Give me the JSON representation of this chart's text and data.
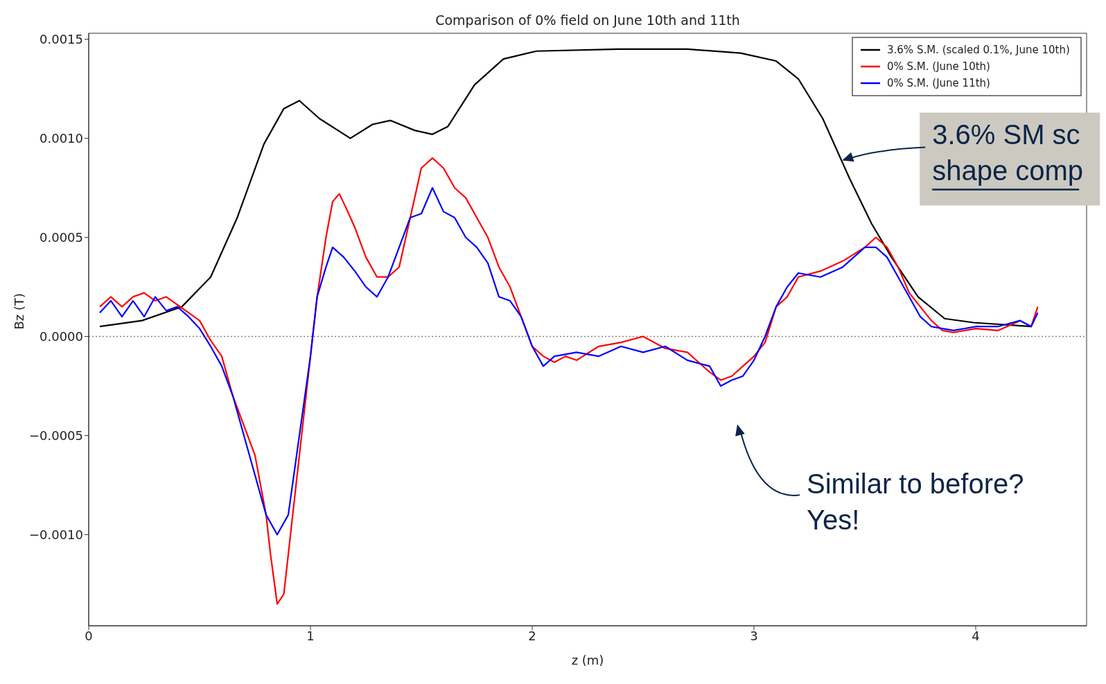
{
  "chart_data": {
    "type": "line",
    "title": "Comparison of 0% field on June 10th and 11th",
    "xlabel": "z (m)",
    "ylabel": "Bz (T)",
    "xlim": [
      0,
      4.5
    ],
    "xticks": [
      0,
      1,
      2,
      3,
      4
    ],
    "ylim": [
      -0.00146,
      0.00153
    ],
    "yticks": [
      {
        "value": -0.001,
        "label": "−0.0010"
      },
      {
        "value": -0.0005,
        "label": "−0.0005"
      },
      {
        "value": 0,
        "label": "0.0000"
      },
      {
        "value": 0.0005,
        "label": "0.0005"
      },
      {
        "value": 0.001,
        "label": "0.0010"
      },
      {
        "value": 0.0015,
        "label": "0.0015"
      }
    ],
    "grid": false,
    "legend": "top right",
    "ref_lines": [
      {
        "axis": "y",
        "value": 0,
        "color": "#808080",
        "line_style": "dotted"
      }
    ],
    "annotations": [
      "3.6% SM sc\nshape comp",
      "Similar to before?\nYes!"
    ],
    "series": [
      {
        "name": "3.6% S.M. (scaled 0.1%, June 10th)",
        "color": "#000000",
        "x": [
          0.05,
          0.24,
          0.42,
          0.55,
          0.67,
          0.79,
          0.88,
          0.95,
          1.04,
          1.18,
          1.28,
          1.36,
          1.47,
          1.55,
          1.62,
          1.74,
          1.87,
          2.02,
          2.39,
          2.7,
          2.94,
          3.1,
          3.2,
          3.31,
          3.43,
          3.53,
          3.62,
          3.74,
          3.86,
          3.99,
          4.25
        ],
        "values": [
          5e-05,
          8e-05,
          0.00015,
          0.0003,
          0.0006,
          0.00097,
          0.00115,
          0.00119,
          0.0011,
          0.001,
          0.00107,
          0.00109,
          0.00104,
          0.00102,
          0.00106,
          0.00127,
          0.0014,
          0.00144,
          0.00145,
          0.00145,
          0.00143,
          0.00139,
          0.0013,
          0.0011,
          0.0008,
          0.00057,
          0.0004,
          0.0002,
          9e-05,
          7e-05,
          5e-05
        ]
      },
      {
        "name": "0% S.M. (June 10th)",
        "color": "#ff0000",
        "x": [
          0.05,
          0.1,
          0.15,
          0.2,
          0.25,
          0.3,
          0.35,
          0.4,
          0.45,
          0.5,
          0.55,
          0.6,
          0.65,
          0.7,
          0.75,
          0.8,
          0.82,
          0.85,
          0.88,
          0.9,
          0.95,
          1.0,
          1.03,
          1.07,
          1.1,
          1.13,
          1.16,
          1.2,
          1.25,
          1.3,
          1.35,
          1.4,
          1.45,
          1.5,
          1.55,
          1.6,
          1.65,
          1.7,
          1.75,
          1.8,
          1.85,
          1.9,
          1.95,
          2.0,
          2.05,
          2.1,
          2.15,
          2.2,
          2.3,
          2.4,
          2.5,
          2.6,
          2.7,
          2.8,
          2.85,
          2.9,
          2.95,
          3.0,
          3.05,
          3.1,
          3.15,
          3.2,
          3.3,
          3.4,
          3.5,
          3.55,
          3.6,
          3.65,
          3.7,
          3.75,
          3.8,
          3.85,
          3.9,
          4.0,
          4.1,
          4.2,
          4.25,
          4.28
        ],
        "values": [
          0.00015,
          0.0002,
          0.00015,
          0.0002,
          0.00022,
          0.00018,
          0.0002,
          0.00016,
          0.00012,
          8e-05,
          -2e-05,
          -0.0001,
          -0.0003,
          -0.00045,
          -0.0006,
          -0.0009,
          -0.0011,
          -0.00135,
          -0.0013,
          -0.0011,
          -0.0006,
          -0.0001,
          0.0002,
          0.0005,
          0.00068,
          0.00072,
          0.00065,
          0.00055,
          0.0004,
          0.0003,
          0.0003,
          0.00035,
          0.0006,
          0.00085,
          0.0009,
          0.00085,
          0.00075,
          0.0007,
          0.0006,
          0.0005,
          0.00035,
          0.00025,
          0.0001,
          -5e-05,
          -0.0001,
          -0.00013,
          -0.0001,
          -0.00012,
          -5e-05,
          -3e-05,
          0,
          -6e-05,
          -8e-05,
          -0.00018,
          -0.00022,
          -0.0002,
          -0.00015,
          -0.0001,
          -3e-05,
          0.00015,
          0.0002,
          0.0003,
          0.00033,
          0.00038,
          0.00045,
          0.0005,
          0.00045,
          0.00035,
          0.00022,
          0.00015,
          8e-05,
          3e-05,
          2e-05,
          4e-05,
          3e-05,
          8e-05,
          5e-05,
          0.00015
        ]
      },
      {
        "name": "0% S.M. (June 11th)",
        "color": "#0000ff",
        "x": [
          0.05,
          0.1,
          0.15,
          0.2,
          0.25,
          0.3,
          0.35,
          0.4,
          0.45,
          0.5,
          0.55,
          0.6,
          0.65,
          0.7,
          0.75,
          0.8,
          0.85,
          0.9,
          0.95,
          1.0,
          1.03,
          1.07,
          1.1,
          1.15,
          1.2,
          1.25,
          1.3,
          1.35,
          1.4,
          1.45,
          1.5,
          1.55,
          1.6,
          1.65,
          1.7,
          1.75,
          1.8,
          1.85,
          1.9,
          1.95,
          2.0,
          2.05,
          2.1,
          2.2,
          2.3,
          2.4,
          2.5,
          2.6,
          2.7,
          2.8,
          2.85,
          2.9,
          2.95,
          3.0,
          3.05,
          3.1,
          3.15,
          3.2,
          3.3,
          3.4,
          3.5,
          3.55,
          3.6,
          3.65,
          3.7,
          3.75,
          3.8,
          3.9,
          4.0,
          4.1,
          4.2,
          4.25,
          4.28
        ],
        "values": [
          0.00012,
          0.00018,
          0.0001,
          0.00018,
          0.0001,
          0.0002,
          0.00013,
          0.00015,
          0.0001,
          4e-05,
          -5e-05,
          -0.00015,
          -0.0003,
          -0.0005,
          -0.0007,
          -0.0009,
          -0.001,
          -0.0009,
          -0.0005,
          -0.0001,
          0.0002,
          0.00035,
          0.00045,
          0.0004,
          0.00033,
          0.00025,
          0.0002,
          0.0003,
          0.00045,
          0.0006,
          0.00062,
          0.00075,
          0.00063,
          0.0006,
          0.0005,
          0.00045,
          0.00037,
          0.0002,
          0.00018,
          0.0001,
          -5e-05,
          -0.00015,
          -0.0001,
          -8e-05,
          -0.0001,
          -5e-05,
          -8e-05,
          -5e-05,
          -0.00012,
          -0.00015,
          -0.00025,
          -0.00022,
          -0.0002,
          -0.00012,
          0,
          0.00015,
          0.00025,
          0.00032,
          0.0003,
          0.00035,
          0.00045,
          0.00045,
          0.0004,
          0.0003,
          0.0002,
          0.0001,
          5e-05,
          3e-05,
          5e-05,
          5e-05,
          8e-05,
          5e-05,
          0.00012
        ]
      }
    ]
  }
}
